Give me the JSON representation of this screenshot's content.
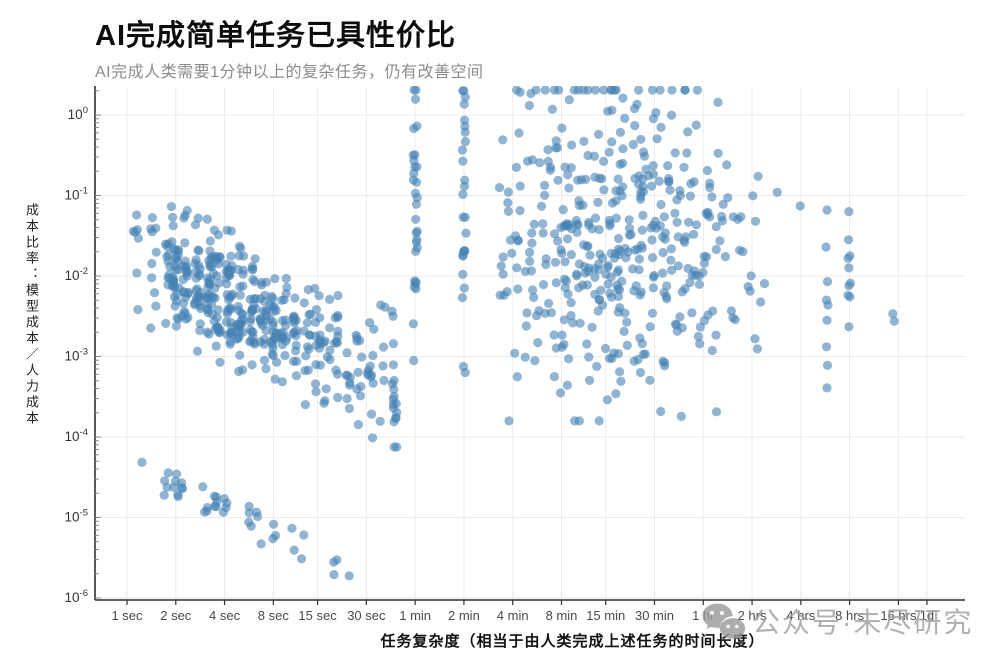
{
  "watermark": {
    "text": "公众号·未尽研究",
    "icon": "wechat-icon",
    "color": "#9c9c9c"
  },
  "chart_data": {
    "type": "scatter",
    "title": "AI完成简单任务已具性价比",
    "subtitle": "AI完成人类需要1分钟以上的复杂任务，仍有改善空间",
    "xlabel": "任务复杂度（相当于由人类完成上述任务的时间长度）",
    "ylabel": "成本比率：模型成本／人力成本",
    "x_scale": "log-time",
    "y_scale": "log10",
    "grid": true,
    "legend": "none",
    "x_ticks": [
      {
        "label": "1 sec",
        "seconds": 1
      },
      {
        "label": "2 sec",
        "seconds": 2
      },
      {
        "label": "4 sec",
        "seconds": 4
      },
      {
        "label": "8 sec",
        "seconds": 8
      },
      {
        "label": "15 sec",
        "seconds": 15
      },
      {
        "label": "30 sec",
        "seconds": 30
      },
      {
        "label": "1 min",
        "seconds": 60
      },
      {
        "label": "2 min",
        "seconds": 120
      },
      {
        "label": "4 min",
        "seconds": 240
      },
      {
        "label": "8 min",
        "seconds": 480
      },
      {
        "label": "15 min",
        "seconds": 900
      },
      {
        "label": "30 min",
        "seconds": 1800
      },
      {
        "label": "1 hr",
        "seconds": 3600
      },
      {
        "label": "2 hrs",
        "seconds": 7200
      },
      {
        "label": "4 hrs",
        "seconds": 14400
      },
      {
        "label": "8 hrs",
        "seconds": 28800
      },
      {
        "label": "16 hrs",
        "seconds": 57600
      },
      {
        "label": "1d",
        "seconds": 86400
      }
    ],
    "y_tick_exponents": [
      0,
      -1,
      -2,
      -3,
      -4,
      -5,
      -6
    ],
    "ylim_exponents": [
      0.34,
      -6
    ],
    "point_color": "#4682b4",
    "point_opacity": 0.6,
    "point_radius": 4.6,
    "seed": 42,
    "clusters": [
      {
        "name": "main-band-1sec-45sec",
        "cols": [
          [
            0.2,
            7
          ],
          [
            0.55,
            10
          ],
          [
            0.85,
            14
          ],
          [
            1.0,
            30
          ],
          [
            1.2,
            24
          ],
          [
            1.45,
            28
          ],
          [
            1.7,
            30
          ],
          [
            1.85,
            26
          ],
          [
            2.1,
            36
          ],
          [
            2.32,
            30
          ],
          [
            2.58,
            26
          ],
          [
            2.8,
            22
          ],
          [
            3.0,
            24
          ],
          [
            3.22,
            18
          ],
          [
            3.46,
            16
          ],
          [
            3.7,
            14
          ],
          [
            3.9,
            16
          ],
          [
            4.1,
            10
          ],
          [
            4.32,
            12
          ],
          [
            4.55,
            8
          ],
          [
            4.75,
            10
          ],
          [
            5.0,
            12
          ],
          [
            5.25,
            6
          ],
          [
            5.45,
            4
          ]
        ],
        "x_jitter": 0.07,
        "y_base": -1.95,
        "y_slope": -0.3,
        "y_ref": 1.0,
        "y_sigma": 0.38,
        "y_clip": 0.85
      },
      {
        "name": "cheap-outlier-band-low-left",
        "cols": [
          [
            0.35,
            1
          ],
          [
            0.8,
            4
          ],
          [
            1.0,
            5
          ],
          [
            1.15,
            3
          ],
          [
            1.6,
            4
          ],
          [
            1.8,
            5
          ],
          [
            2.0,
            4
          ],
          [
            2.5,
            4
          ],
          [
            2.7,
            3
          ],
          [
            3.0,
            3
          ],
          [
            3.4,
            2
          ],
          [
            3.6,
            2
          ],
          [
            4.2,
            2
          ],
          [
            4.35,
            1
          ],
          [
            4.53,
            1
          ]
        ],
        "x_jitter": 0.05,
        "y_base": -4.32,
        "y_slope": -0.295,
        "y_ref": 0,
        "y_sigma": 0.1,
        "y_clip": 0.22
      },
      {
        "name": "stripe-45sec",
        "cols": [
          [
            5.49,
            14
          ]
        ],
        "x_jitter": 0.04,
        "y_base": -3.4,
        "y_slope": 0,
        "y_ref": 0,
        "y_sigma": 0.5,
        "y_clip_abs": [
          -4.3,
          -2.5
        ]
      },
      {
        "name": "stripe-1min",
        "cols": [
          [
            5.91,
            30
          ]
        ],
        "x_jitter": 0.04,
        "y_base": -1.1,
        "y_slope": 0,
        "y_ref": 0,
        "y_sigma": 1.0,
        "y_clip_abs": [
          -3.05,
          0.35
        ]
      },
      {
        "name": "stripe-2min",
        "cols": [
          [
            6.91,
            26
          ]
        ],
        "x_jitter": 0.04,
        "y_base": -1.3,
        "y_slope": 0,
        "y_ref": 0,
        "y_sigma": 0.95,
        "y_clip_abs": [
          -3.2,
          0.3
        ]
      },
      {
        "name": "cloud-4min-to-2hrs",
        "cols": [
          [
            7.7,
            10
          ],
          [
            7.9,
            12
          ],
          [
            8.15,
            14
          ],
          [
            8.4,
            16
          ],
          [
            8.65,
            18
          ],
          [
            8.9,
            22
          ],
          [
            9.1,
            24
          ],
          [
            9.35,
            26
          ],
          [
            9.55,
            24
          ],
          [
            9.8,
            26
          ],
          [
            10.0,
            28
          ],
          [
            10.2,
            26
          ],
          [
            10.45,
            24
          ],
          [
            10.65,
            22
          ],
          [
            10.9,
            24
          ],
          [
            11.1,
            20
          ],
          [
            11.35,
            18
          ],
          [
            11.55,
            16
          ],
          [
            11.8,
            14
          ],
          [
            12.0,
            12
          ],
          [
            12.2,
            10
          ],
          [
            12.5,
            8
          ],
          [
            12.8,
            6
          ],
          [
            12.95,
            4
          ]
        ],
        "x_jitter": 0.14,
        "y_base": -1.55,
        "y_slope": 0,
        "y_ref": 0,
        "y_sigma": 1.05,
        "y_clip_abs": [
          -3.8,
          0.35
        ]
      }
    ],
    "sparse_points_log2x_log10y": [
      [
        13.33,
        -0.96
      ],
      [
        13.8,
        -1.13
      ],
      [
        14.35,
        -1.18
      ],
      [
        14.33,
        -1.64
      ],
      [
        14.36,
        -2.07
      ],
      [
        14.34,
        -2.3
      ],
      [
        14.37,
        -2.36
      ],
      [
        14.35,
        -2.55
      ],
      [
        14.34,
        -2.88
      ],
      [
        14.36,
        -3.11
      ],
      [
        14.35,
        -3.39
      ],
      [
        14.8,
        -1.2
      ],
      [
        14.79,
        -1.55
      ],
      [
        14.82,
        -1.75
      ],
      [
        14.78,
        -1.78
      ],
      [
        14.8,
        -1.9
      ],
      [
        14.83,
        -2.09
      ],
      [
        14.8,
        -2.12
      ],
      [
        14.78,
        -2.24
      ],
      [
        14.82,
        -2.26
      ],
      [
        14.8,
        -2.63
      ],
      [
        15.7,
        -2.47
      ],
      [
        15.73,
        -2.56
      ]
    ]
  }
}
